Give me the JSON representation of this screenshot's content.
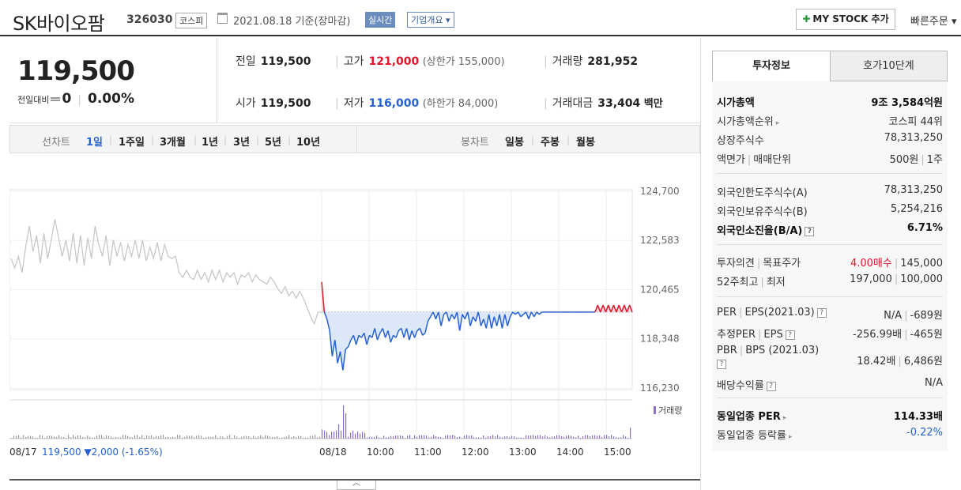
{
  "header": {
    "name": "SK바이오팜",
    "code": "326030",
    "market": "코스피",
    "date": "2021.08.18 기준(장마감)",
    "realtime": "실시간",
    "company": "기업개요 ▾",
    "mystock": "MY STOCK 추가",
    "quick": "빠른주문 ▾"
  },
  "price": {
    "current": "119,500",
    "change_label": "전일대비",
    "change_value": "0",
    "change_rate": "0.00%",
    "prev_label": "전일",
    "prev": "119,500",
    "open_label": "시가",
    "open": "119,500",
    "high_label": "고가",
    "high": "121,000",
    "upper_limit": "(상한가 155,000)",
    "low_label": "저가",
    "low": "116,000",
    "lower_limit": "(하한가 84,000)",
    "volume_label": "거래량",
    "volume": "281,952",
    "amount_label": "거래대금",
    "amount": "33,404",
    "amount_unit": "백만"
  },
  "tabs": {
    "line_label": "선차트",
    "line": [
      "1일",
      "1주일",
      "3개월",
      "1년",
      "3년",
      "5년",
      "10년"
    ],
    "candle_label": "봉차트",
    "candle": [
      "일봉",
      "주봉",
      "월봉"
    ]
  },
  "chart_data": {
    "type": "line",
    "x_ticks": [
      "08/17",
      "08/18",
      "10:00",
      "11:00",
      "12:00",
      "13:00",
      "14:00",
      "15:00"
    ],
    "y_ticks": [
      124700,
      122583,
      120465,
      118348,
      116230
    ],
    "ylim": [
      116230,
      124700
    ],
    "base_price": 119500,
    "prev_day_footer": "119,500 ▼2,000 (-1.65%)",
    "volume_label": "거래량",
    "colors": {
      "prev": "#c8c8c8",
      "up": "#e0142b",
      "down": "#2661d2",
      "down_fill": "#dce8f8",
      "up_fill": "#fbd9dc",
      "volume": "#8b6fc6"
    },
    "prev_series": [
      121800,
      121400,
      121900,
      121200,
      122300,
      123200,
      122100,
      122800,
      121600,
      122900,
      121800,
      122600,
      123500,
      122700,
      121900,
      122600,
      121700,
      122900,
      121600,
      122800,
      121500,
      122700,
      121800,
      123200,
      122400,
      121900,
      122800,
      121500,
      122600,
      121900,
      122500,
      121700,
      122400,
      121900,
      122600,
      121800,
      122600,
      121700,
      122300,
      121800,
      122500,
      121700,
      122400,
      121900,
      121800,
      121900,
      121200,
      121000,
      121300,
      121000,
      120900,
      121300,
      120900,
      121200,
      120800,
      121300,
      120900,
      121300,
      120800,
      121200,
      121000,
      121200,
      120700,
      121100,
      121000,
      121200,
      120800,
      121100,
      120900,
      120800,
      120700,
      121000,
      120800,
      120500,
      120300,
      120600,
      120200,
      120400,
      120100,
      120400,
      120100,
      119700,
      119300,
      119000,
      119500,
      119500
    ],
    "today_series": [
      120800,
      119500,
      119200,
      118700,
      117600,
      118300,
      117300,
      117800,
      117000,
      117900,
      118000,
      118300,
      118500,
      118100,
      118500,
      118400,
      118600,
      118100,
      118500,
      118400,
      118800,
      118300,
      118600,
      118800,
      118400,
      118700,
      118200,
      118500,
      118400,
      118700,
      118800,
      118400,
      118800,
      118300,
      118700,
      118400,
      118700,
      118800,
      118500,
      118600,
      119100,
      119300,
      119500,
      119200,
      119500,
      118900,
      119400,
      119500,
      119100,
      119400,
      119200,
      119500,
      118700,
      119400,
      119200,
      119500,
      118900,
      119300,
      119100,
      119500,
      118900,
      119200,
      118800,
      119400,
      118800,
      119300,
      118900,
      119400,
      118800,
      119400,
      118900,
      119300,
      119500,
      119400,
      119500,
      119300,
      119400,
      119500,
      119200,
      119500,
      119300,
      119500,
      119400,
      119500,
      119500,
      119500,
      119500,
      119500,
      119500,
      119500,
      119500,
      119500,
      119500,
      119500,
      119500,
      119500,
      119500,
      119500,
      119500,
      119500,
      119500,
      119500,
      119500,
      119500,
      119800,
      119500,
      119800,
      119500,
      119800,
      119500,
      119800,
      119500,
      119800,
      119500,
      119800,
      119500,
      119800,
      119500
    ]
  },
  "side": {
    "tab_a": "투자정보",
    "tab_b": "호가10단계",
    "market_cap_label": "시가총액",
    "market_cap": "9조 3,584억원",
    "rank_label": "시가총액순위",
    "rank": "코스피 44위",
    "shares_label": "상장주식수",
    "shares": "78,313,250",
    "par_label": "액면가",
    "unit_label": "매매단위",
    "par": "500원",
    "unit": "1주",
    "foreign_limit_label": "외국인한도주식수(A)",
    "foreign_limit": "78,313,250",
    "foreign_hold_label": "외국인보유주식수(B)",
    "foreign_hold": "5,254,216",
    "foreign_rate_label": "외국인소진율(B/A)",
    "foreign_rate": "6.71%",
    "opinion_label": "투자의견",
    "target_label": "목표주가",
    "opinion": "4.00매수",
    "target": "145,000",
    "w52_label": "52주최고",
    "w52_low_label": "최저",
    "w52_high": "197,000",
    "w52_low": "100,000",
    "per_label": "PER",
    "eps_label": "EPS(2021.03)",
    "per": "N/A",
    "eps": "-689원",
    "est_per_label": "추정PER",
    "est_eps_label": "EPS",
    "est_per": "-256.99배",
    "est_eps": "-465원",
    "pbr_label": "PBR",
    "bps_label": "BPS (2021.03)",
    "pbr": "18.42배",
    "bps": "6,486원",
    "div_label": "배당수익률",
    "div": "N/A",
    "ind_per_label": "동일업종 PER",
    "ind_per": "114.33배",
    "ind_rate_label": "동일업종 등락률",
    "ind_rate": "-0.22%"
  }
}
